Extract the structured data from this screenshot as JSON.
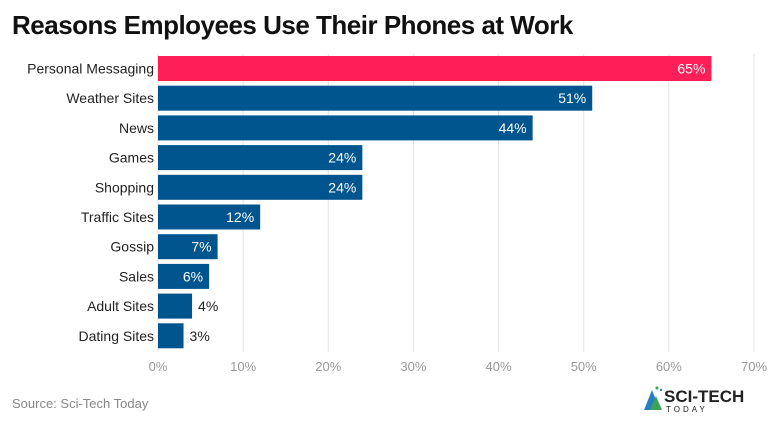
{
  "chart_data": {
    "type": "bar",
    "orientation": "horizontal",
    "title": "Reasons Employees Use Their Phones at Work",
    "categories": [
      "Personal Messaging",
      "Weather Sites",
      "News",
      "Games",
      "Shopping",
      "Traffic Sites",
      "Gossip",
      "Sales",
      "Adult Sites",
      "Dating Sites"
    ],
    "values": [
      65,
      51,
      44,
      24,
      24,
      12,
      7,
      6,
      4,
      3
    ],
    "data_labels": [
      "65%",
      "51%",
      "44%",
      "24%",
      "24%",
      "12%",
      "7%",
      "6%",
      "4%",
      "3%"
    ],
    "xlim": [
      0,
      70
    ],
    "xticks": [
      0,
      10,
      20,
      30,
      40,
      50,
      60,
      70
    ],
    "xtick_labels": [
      "0%",
      "10%",
      "20%",
      "30%",
      "40%",
      "50%",
      "60%",
      "70%"
    ],
    "grid": "vertical",
    "colors": {
      "highlight": "#fe1f58",
      "default": "#00558f"
    }
  },
  "source": "Source: Sci-Tech Today",
  "logo": {
    "text": "SCI-TECH",
    "subtext": "TODAY"
  }
}
